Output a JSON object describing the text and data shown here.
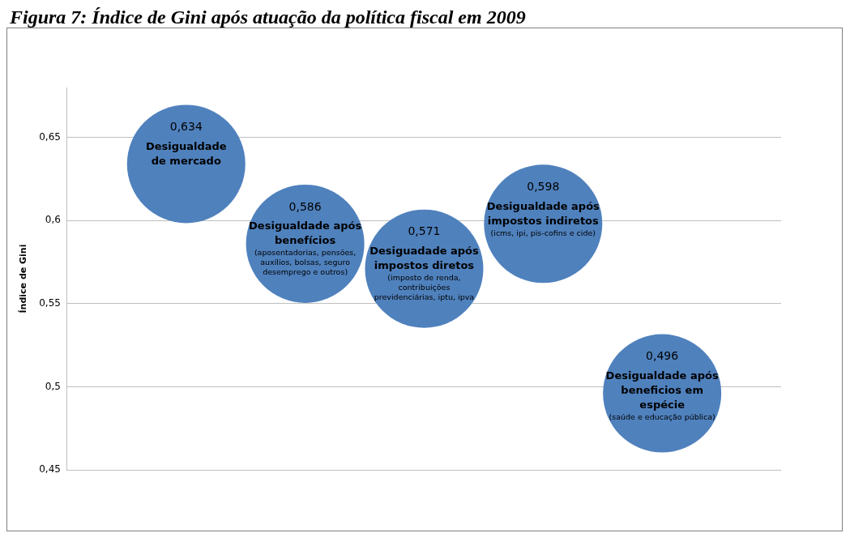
{
  "chart_data": {
    "type": "bubble",
    "title": "Figura 7: Índice de Gini após atuação da política fiscal em 2009",
    "ylabel": "Índice de Gini",
    "categories": [
      null,
      null,
      null,
      null,
      null
    ],
    "ylim": [
      0.45,
      0.68
    ],
    "yticks": [
      {
        "value": 0.45,
        "label": "0,45"
      },
      {
        "value": 0.5,
        "label": "0,5"
      },
      {
        "value": 0.55,
        "label": "0,55"
      },
      {
        "value": 0.6,
        "label": "0,6"
      },
      {
        "value": 0.65,
        "label": "0,65"
      }
    ],
    "grid": "y",
    "legend": false,
    "series": [
      {
        "name": "Desigualdade\nde mercado",
        "color": "#4f81bd",
        "values": [
          0.634,
          null,
          null,
          null,
          null
        ],
        "sizes": [
          1,
          null,
          null,
          null,
          null
        ],
        "value_labels": [
          "0,634",
          null,
          null,
          null,
          null
        ]
      },
      {
        "name": "Desigualdade após\nbenefícios",
        "color": "#4f81bd",
        "values": [
          null,
          0.586,
          null,
          null,
          null
        ],
        "sizes": [
          null,
          1,
          null,
          null,
          null
        ],
        "value_labels": [
          null,
          "0,586",
          null,
          null,
          null
        ]
      },
      {
        "name": "Desiguadade após\nimpostos diretos",
        "color": "#4f81bd",
        "values": [
          null,
          null,
          0.571,
          null,
          null
        ],
        "sizes": [
          null,
          null,
          1,
          null,
          null
        ],
        "value_labels": [
          null,
          null,
          "0,571",
          null,
          null
        ]
      },
      {
        "name": "Desigualdade após\nimpostos indiretos",
        "color": "#4f81bd",
        "values": [
          null,
          null,
          null,
          0.598,
          null
        ],
        "sizes": [
          null,
          null,
          null,
          1,
          null
        ],
        "value_labels": [
          null,
          null,
          null,
          "0,598",
          null
        ]
      },
      {
        "name": "Desigualdade após\nbeneficios em\nespécie",
        "color": "#4f81bd",
        "values": [
          null,
          null,
          null,
          null,
          0.496
        ],
        "sizes": [
          null,
          null,
          null,
          null,
          1
        ],
        "value_labels": [
          null,
          null,
          null,
          null,
          "0,496"
        ]
      }
    ],
    "annotations": [
      {
        "text": "(aposentadorias, pensões,\nauxílios, bolsas, seguro\ndesemprego e outros)",
        "y": 0.586
      },
      {
        "text": "(imposto de renda,\ncontribuições\nprevidenciárias, iptu, ipva",
        "y": 0.571
      },
      {
        "text": "(icms, ipi, pis-cofins e cide)",
        "y": 0.598
      },
      {
        "text": "(saúde e educação pública)",
        "y": 0.496
      }
    ]
  }
}
